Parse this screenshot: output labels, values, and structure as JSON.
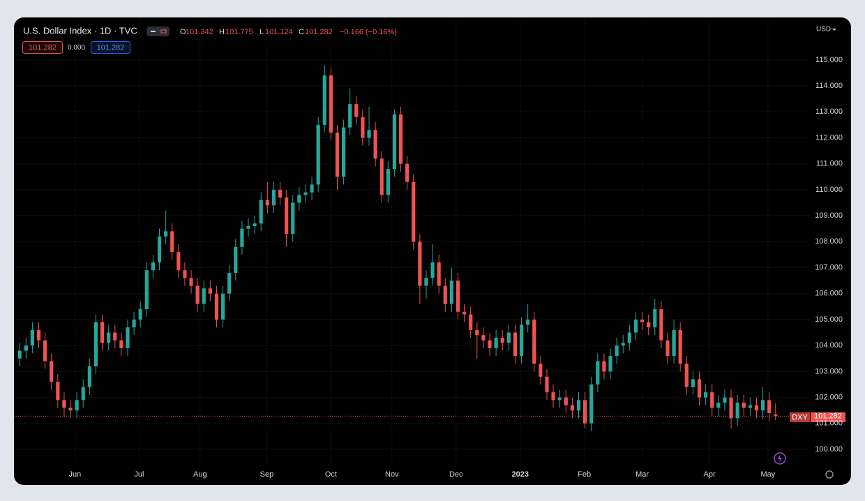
{
  "chart_data": {
    "type": "candlestick",
    "title": "U.S. Dollar Index · 1D · TVC",
    "symbol": "DXY",
    "currency": "USD",
    "ohlc_letters": {
      "open": "O",
      "high": "H",
      "low": "L",
      "close": "C"
    },
    "change_label": "−0.166 (−0.16%)",
    "bid": 101.282,
    "spread": {
      "value": 0,
      "label": "0.000"
    },
    "ask": 101.282,
    "up_color": "#26a69a",
    "down_color": "#ef5350",
    "grid": true,
    "xlim": [
      -0.9,
      121
    ],
    "xticks": [
      {
        "value": 8.7,
        "label": "Jun"
      },
      {
        "value": 18.8,
        "label": "Jul"
      },
      {
        "value": 28.4,
        "label": "Aug"
      },
      {
        "value": 38.9,
        "label": "Sep"
      },
      {
        "value": 49,
        "label": "Oct"
      },
      {
        "value": 58.6,
        "label": "Nov"
      },
      {
        "value": 68.7,
        "label": "Dec"
      },
      {
        "value": 78.8,
        "label": "2023"
      },
      {
        "value": 88.9,
        "label": "Feb"
      },
      {
        "value": 98,
        "label": "Mar"
      },
      {
        "value": 108.6,
        "label": "Apr"
      },
      {
        "value": 117.8,
        "label": "May"
      }
    ],
    "ylim": [
      98.63,
      115.91
    ],
    "yticks": [
      {
        "value": 100,
        "label": "100.000"
      },
      {
        "value": 101,
        "label": "101.000"
      },
      {
        "value": 102,
        "label": "102.000"
      },
      {
        "value": 103,
        "label": "103.000"
      },
      {
        "value": 104,
        "label": "104.000"
      },
      {
        "value": 105,
        "label": "105.000"
      },
      {
        "value": 106,
        "label": "106.000"
      },
      {
        "value": 107,
        "label": "107.000"
      },
      {
        "value": 108,
        "label": "108.000"
      },
      {
        "value": 109,
        "label": "109.000"
      },
      {
        "value": 110,
        "label": "110.000"
      },
      {
        "value": 111,
        "label": "111.000"
      },
      {
        "value": 112,
        "label": "112.000"
      },
      {
        "value": 113,
        "label": "113.000"
      },
      {
        "value": 114,
        "label": "114.000"
      },
      {
        "value": 115,
        "label": "115.000"
      }
    ],
    "open": [
      103.5,
      103.8,
      104.0,
      104.6,
      104.2,
      103.4,
      102.6,
      101.9,
      101.6,
      101.5,
      101.9,
      102.4,
      103.2,
      104.9,
      104.1,
      104.5,
      104.2,
      103.9,
      104.7,
      105.0,
      105.4,
      106.9,
      107.2,
      108.2,
      108.4,
      107.6,
      106.9,
      106.6,
      106.3,
      105.6,
      106.2,
      106.0,
      105.0,
      106.0,
      106.8,
      107.8,
      108.5,
      108.6,
      108.7,
      109.6,
      109.4,
      110.0,
      109.7,
      108.3,
      109.5,
      109.8,
      109.9,
      110.2,
      112.5,
      114.4,
      112.2,
      110.5,
      112.4,
      113.3,
      112.8,
      112.0,
      112.3,
      111.2,
      109.8,
      110.8,
      112.9,
      111.0,
      110.3,
      108.0,
      106.3,
      106.6,
      107.2,
      106.3,
      105.6,
      106.5,
      105.3,
      105.2,
      104.6,
      104.4,
      104.2,
      103.9,
      104.3,
      104.1,
      104.5,
      103.6,
      104.8,
      105.0,
      103.3,
      102.8,
      102.2,
      101.9,
      102.0,
      101.7,
      101.5,
      101.9,
      101.0,
      102.5,
      103.4,
      103.0,
      103.6,
      104.0,
      104.1,
      104.5,
      105.0,
      104.9,
      104.7,
      105.4,
      104.2,
      103.6,
      104.6,
      103.3,
      102.4,
      102.7,
      102.0,
      102.2,
      101.6,
      101.8,
      102.0,
      101.2,
      101.8,
      101.6,
      101.7,
      101.5,
      101.9,
      101.342
    ],
    "high": [
      104.1,
      104.3,
      104.9,
      104.9,
      104.5,
      103.7,
      102.9,
      102.2,
      101.9,
      102.2,
      102.7,
      103.5,
      105.2,
      105.2,
      104.8,
      104.8,
      104.5,
      105.0,
      105.3,
      105.7,
      107.2,
      107.5,
      108.5,
      109.2,
      108.7,
      107.9,
      107.2,
      106.9,
      106.6,
      106.5,
      106.5,
      106.3,
      106.3,
      107.1,
      108.1,
      108.8,
      108.9,
      109.0,
      109.9,
      110.3,
      110.3,
      110.3,
      110.0,
      109.8,
      110.1,
      110.2,
      110.5,
      112.8,
      114.8,
      114.7,
      112.5,
      112.7,
      113.9,
      113.6,
      113.1,
      113.2,
      112.6,
      111.5,
      111.1,
      113.1,
      113.2,
      111.3,
      110.6,
      108.3,
      106.9,
      107.9,
      107.5,
      106.6,
      107.0,
      106.8,
      105.6,
      105.5,
      104.9,
      104.7,
      104.5,
      104.6,
      104.6,
      104.8,
      104.8,
      105.1,
      105.6,
      105.3,
      103.6,
      103.1,
      102.5,
      102.3,
      102.3,
      102.0,
      102.2,
      102.2,
      102.8,
      103.7,
      103.7,
      103.9,
      104.3,
      104.4,
      104.8,
      105.3,
      105.3,
      105.2,
      105.8,
      105.7,
      104.5,
      105.0,
      104.9,
      103.6,
      103.0,
      103.0,
      102.5,
      102.5,
      102.1,
      102.3,
      102.3,
      102.1,
      102.1,
      102.0,
      102.0,
      102.4,
      102.2,
      101.775
    ],
    "low": [
      103.2,
      103.5,
      103.7,
      103.9,
      103.1,
      102.3,
      101.6,
      101.3,
      101.2,
      101.2,
      101.6,
      102.1,
      102.9,
      103.8,
      103.8,
      103.9,
      103.6,
      103.6,
      104.4,
      104.7,
      105.1,
      106.6,
      106.9,
      107.9,
      107.3,
      106.6,
      106.3,
      106.0,
      105.3,
      105.3,
      105.7,
      104.7,
      104.7,
      105.7,
      106.5,
      107.5,
      108.2,
      108.3,
      108.4,
      109.1,
      109.1,
      109.4,
      107.8,
      108.0,
      109.2,
      109.5,
      109.6,
      109.9,
      112.2,
      111.9,
      110.0,
      110.2,
      112.1,
      112.5,
      111.7,
      111.7,
      110.9,
      109.5,
      109.5,
      110.5,
      110.7,
      110.0,
      107.7,
      105.6,
      105.8,
      106.3,
      106.0,
      105.3,
      105.3,
      105.0,
      104.9,
      104.3,
      103.5,
      103.9,
      103.6,
      103.6,
      103.8,
      103.8,
      103.3,
      103.3,
      104.5,
      103.0,
      102.5,
      101.9,
      101.6,
      101.6,
      101.4,
      101.2,
      101.2,
      100.8,
      100.7,
      102.2,
      102.7,
      102.7,
      103.3,
      103.7,
      103.8,
      104.2,
      104.6,
      104.4,
      104.4,
      103.9,
      103.3,
      103.3,
      103.0,
      102.1,
      102.1,
      101.7,
      101.7,
      101.3,
      101.3,
      101.5,
      100.8,
      100.9,
      101.3,
      101.3,
      101.2,
      101.2,
      101.1,
      101.124
    ],
    "close": [
      103.8,
      104.0,
      104.6,
      104.2,
      103.4,
      102.6,
      101.9,
      101.6,
      101.5,
      101.9,
      102.4,
      103.2,
      104.9,
      104.1,
      104.5,
      104.2,
      103.9,
      104.7,
      105.0,
      105.4,
      106.9,
      107.2,
      108.2,
      108.4,
      107.6,
      106.9,
      106.6,
      106.3,
      105.6,
      106.2,
      106.0,
      105.0,
      106.0,
      106.8,
      107.8,
      108.5,
      108.6,
      108.7,
      109.6,
      109.4,
      110.0,
      109.7,
      108.3,
      109.5,
      109.8,
      109.9,
      110.2,
      112.5,
      114.4,
      112.2,
      110.5,
      112.4,
      113.3,
      112.8,
      112.0,
      112.3,
      111.2,
      109.8,
      110.8,
      112.9,
      111.0,
      110.3,
      108.0,
      106.3,
      106.6,
      107.2,
      106.3,
      105.6,
      106.5,
      105.3,
      105.2,
      104.6,
      104.4,
      104.2,
      103.9,
      104.3,
      104.1,
      104.5,
      103.6,
      104.8,
      105.0,
      103.3,
      102.8,
      102.2,
      101.9,
      102.0,
      101.7,
      101.5,
      101.9,
      101.0,
      102.5,
      103.4,
      103.0,
      103.6,
      104.0,
      104.1,
      104.5,
      105.0,
      104.9,
      104.7,
      105.4,
      104.2,
      103.6,
      104.6,
      103.3,
      102.4,
      102.7,
      102.0,
      102.2,
      101.6,
      101.8,
      102.0,
      101.2,
      101.8,
      101.6,
      101.7,
      101.5,
      101.9,
      101.4,
      101.282
    ]
  }
}
